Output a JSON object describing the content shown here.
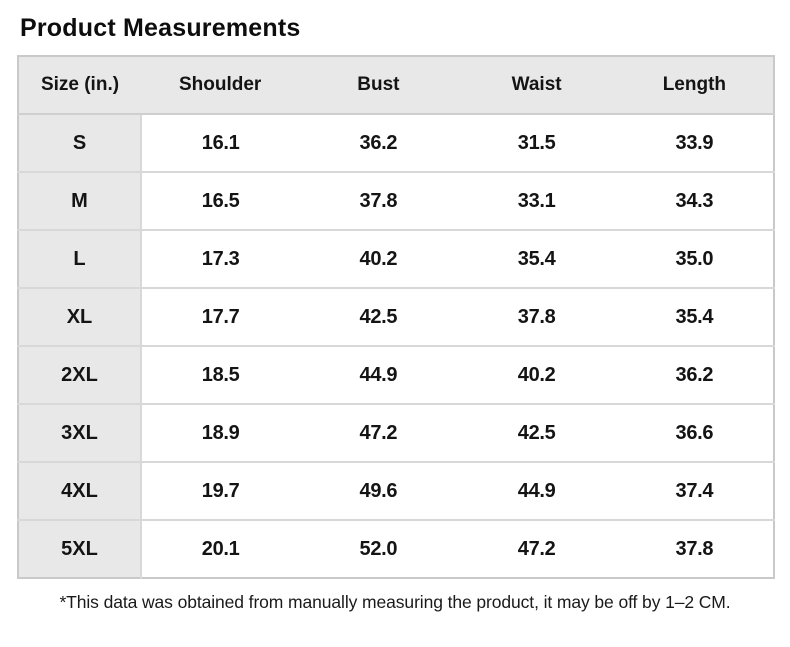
{
  "title": "Product Measurements",
  "table": {
    "columns": [
      "Size (in.)",
      "Shoulder",
      "Bust",
      "Waist",
      "Length"
    ],
    "rows": [
      {
        "size": "S",
        "values": [
          "16.1",
          "36.2",
          "31.5",
          "33.9"
        ]
      },
      {
        "size": "M",
        "values": [
          "16.5",
          "37.8",
          "33.1",
          "34.3"
        ]
      },
      {
        "size": "L",
        "values": [
          "17.3",
          "40.2",
          "35.4",
          "35.0"
        ]
      },
      {
        "size": "XL",
        "values": [
          "17.7",
          "42.5",
          "37.8",
          "35.4"
        ]
      },
      {
        "size": "2XL",
        "values": [
          "18.5",
          "44.9",
          "40.2",
          "36.2"
        ]
      },
      {
        "size": "3XL",
        "values": [
          "18.9",
          "47.2",
          "42.5",
          "36.6"
        ]
      },
      {
        "size": "4XL",
        "values": [
          "19.7",
          "49.6",
          "44.9",
          "37.4"
        ]
      },
      {
        "size": "5XL",
        "values": [
          "20.1",
          "52.0",
          "47.2",
          "37.8"
        ]
      }
    ]
  },
  "footnote": "*This data was obtained from manually measuring the product, it may be off by 1–2 CM.",
  "colors": {
    "background": "#ffffff",
    "header_bg": "#e8e8e8",
    "size_column_bg": "#e8e8e8",
    "outer_border": "#c9c9c9",
    "row_divider": "#d8d8d8",
    "text": "#141414"
  },
  "chart_data": {
    "type": "table",
    "title": "Product Measurements",
    "columns": [
      "Size (in.)",
      "Shoulder",
      "Bust",
      "Waist",
      "Length"
    ],
    "rows": [
      [
        "S",
        16.1,
        36.2,
        31.5,
        33.9
      ],
      [
        "M",
        16.5,
        37.8,
        33.1,
        34.3
      ],
      [
        "L",
        17.3,
        40.2,
        35.4,
        35.0
      ],
      [
        "XL",
        17.7,
        42.5,
        37.8,
        35.4
      ],
      [
        "2XL",
        18.5,
        44.9,
        40.2,
        36.2
      ],
      [
        "3XL",
        18.9,
        47.2,
        42.5,
        36.6
      ],
      [
        "4XL",
        19.7,
        49.6,
        44.9,
        37.4
      ],
      [
        "5XL",
        20.1,
        52.0,
        47.2,
        37.8
      ]
    ],
    "footnote": "*This data was obtained from manually measuring the product, it may be off by 1–2 CM."
  }
}
